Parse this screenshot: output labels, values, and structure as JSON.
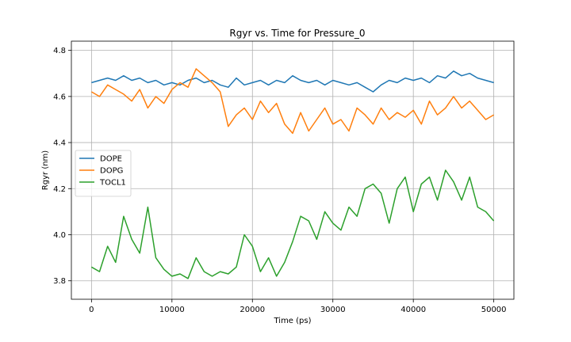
{
  "chart_data": {
    "type": "line",
    "title": "Rgyr vs. Time for Pressure_0",
    "xlabel": "Time (ps)",
    "ylabel": "Rgyr (nm)",
    "xlim": [
      -2500,
      52500
    ],
    "ylim": [
      3.72,
      4.84
    ],
    "xticks": [
      0,
      10000,
      20000,
      30000,
      40000,
      50000
    ],
    "xtick_labels": [
      "0",
      "10000",
      "20000",
      "30000",
      "40000",
      "50000"
    ],
    "yticks": [
      3.8,
      4.0,
      4.2,
      4.4,
      4.6,
      4.8
    ],
    "ytick_labels": [
      "3.8",
      "4.0",
      "4.2",
      "4.4",
      "4.6",
      "4.8"
    ],
    "grid": true,
    "legend_position": "center-left",
    "series": [
      {
        "name": "DOPE",
        "color": "#1f77b4",
        "x": [
          0,
          1000,
          2000,
          3000,
          4000,
          5000,
          6000,
          7000,
          8000,
          9000,
          10000,
          11000,
          12000,
          13000,
          14000,
          15000,
          16000,
          17000,
          18000,
          19000,
          20000,
          21000,
          22000,
          23000,
          24000,
          25000,
          26000,
          27000,
          28000,
          29000,
          30000,
          31000,
          32000,
          33000,
          34000,
          35000,
          36000,
          37000,
          38000,
          39000,
          40000,
          41000,
          42000,
          43000,
          44000,
          45000,
          46000,
          47000,
          48000,
          49000,
          50000
        ],
        "values": [
          4.66,
          4.67,
          4.68,
          4.67,
          4.69,
          4.67,
          4.68,
          4.66,
          4.67,
          4.65,
          4.66,
          4.65,
          4.67,
          4.68,
          4.66,
          4.67,
          4.65,
          4.64,
          4.68,
          4.65,
          4.66,
          4.67,
          4.65,
          4.67,
          4.66,
          4.69,
          4.67,
          4.66,
          4.67,
          4.65,
          4.67,
          4.66,
          4.65,
          4.66,
          4.64,
          4.62,
          4.65,
          4.67,
          4.66,
          4.68,
          4.67,
          4.68,
          4.66,
          4.69,
          4.68,
          4.71,
          4.69,
          4.7,
          4.68,
          4.67,
          4.66
        ]
      },
      {
        "name": "DOPG",
        "color": "#ff7f0e",
        "x": [
          0,
          1000,
          2000,
          3000,
          4000,
          5000,
          6000,
          7000,
          8000,
          9000,
          10000,
          11000,
          12000,
          13000,
          14000,
          15000,
          16000,
          17000,
          18000,
          19000,
          20000,
          21000,
          22000,
          23000,
          24000,
          25000,
          26000,
          27000,
          28000,
          29000,
          30000,
          31000,
          32000,
          33000,
          34000,
          35000,
          36000,
          37000,
          38000,
          39000,
          40000,
          41000,
          42000,
          43000,
          44000,
          45000,
          46000,
          47000,
          48000,
          49000,
          50000
        ],
        "values": [
          4.62,
          4.6,
          4.65,
          4.63,
          4.61,
          4.58,
          4.63,
          4.55,
          4.6,
          4.57,
          4.63,
          4.66,
          4.64,
          4.72,
          4.69,
          4.66,
          4.62,
          4.47,
          4.52,
          4.55,
          4.5,
          4.58,
          4.53,
          4.57,
          4.48,
          4.44,
          4.53,
          4.45,
          4.5,
          4.55,
          4.48,
          4.5,
          4.45,
          4.55,
          4.52,
          4.48,
          4.55,
          4.5,
          4.53,
          4.51,
          4.54,
          4.48,
          4.58,
          4.52,
          4.55,
          4.6,
          4.55,
          4.58,
          4.54,
          4.5,
          4.52
        ]
      },
      {
        "name": "TOCL1",
        "color": "#2ca02c",
        "x": [
          0,
          1000,
          2000,
          3000,
          4000,
          5000,
          6000,
          7000,
          8000,
          9000,
          10000,
          11000,
          12000,
          13000,
          14000,
          15000,
          16000,
          17000,
          18000,
          19000,
          20000,
          21000,
          22000,
          23000,
          24000,
          25000,
          26000,
          27000,
          28000,
          29000,
          30000,
          31000,
          32000,
          33000,
          34000,
          35000,
          36000,
          37000,
          38000,
          39000,
          40000,
          41000,
          42000,
          43000,
          44000,
          45000,
          46000,
          47000,
          48000,
          49000,
          50000
        ],
        "values": [
          3.86,
          3.84,
          3.95,
          3.88,
          4.08,
          3.98,
          3.92,
          4.12,
          3.9,
          3.85,
          3.82,
          3.83,
          3.81,
          3.9,
          3.84,
          3.82,
          3.84,
          3.83,
          3.86,
          4.0,
          3.95,
          3.84,
          3.9,
          3.82,
          3.88,
          3.97,
          4.08,
          4.06,
          3.98,
          4.1,
          4.05,
          4.02,
          4.12,
          4.08,
          4.2,
          4.22,
          4.18,
          4.05,
          4.2,
          4.25,
          4.1,
          4.22,
          4.25,
          4.15,
          4.28,
          4.23,
          4.15,
          4.25,
          4.12,
          4.1,
          4.06
        ]
      }
    ]
  }
}
